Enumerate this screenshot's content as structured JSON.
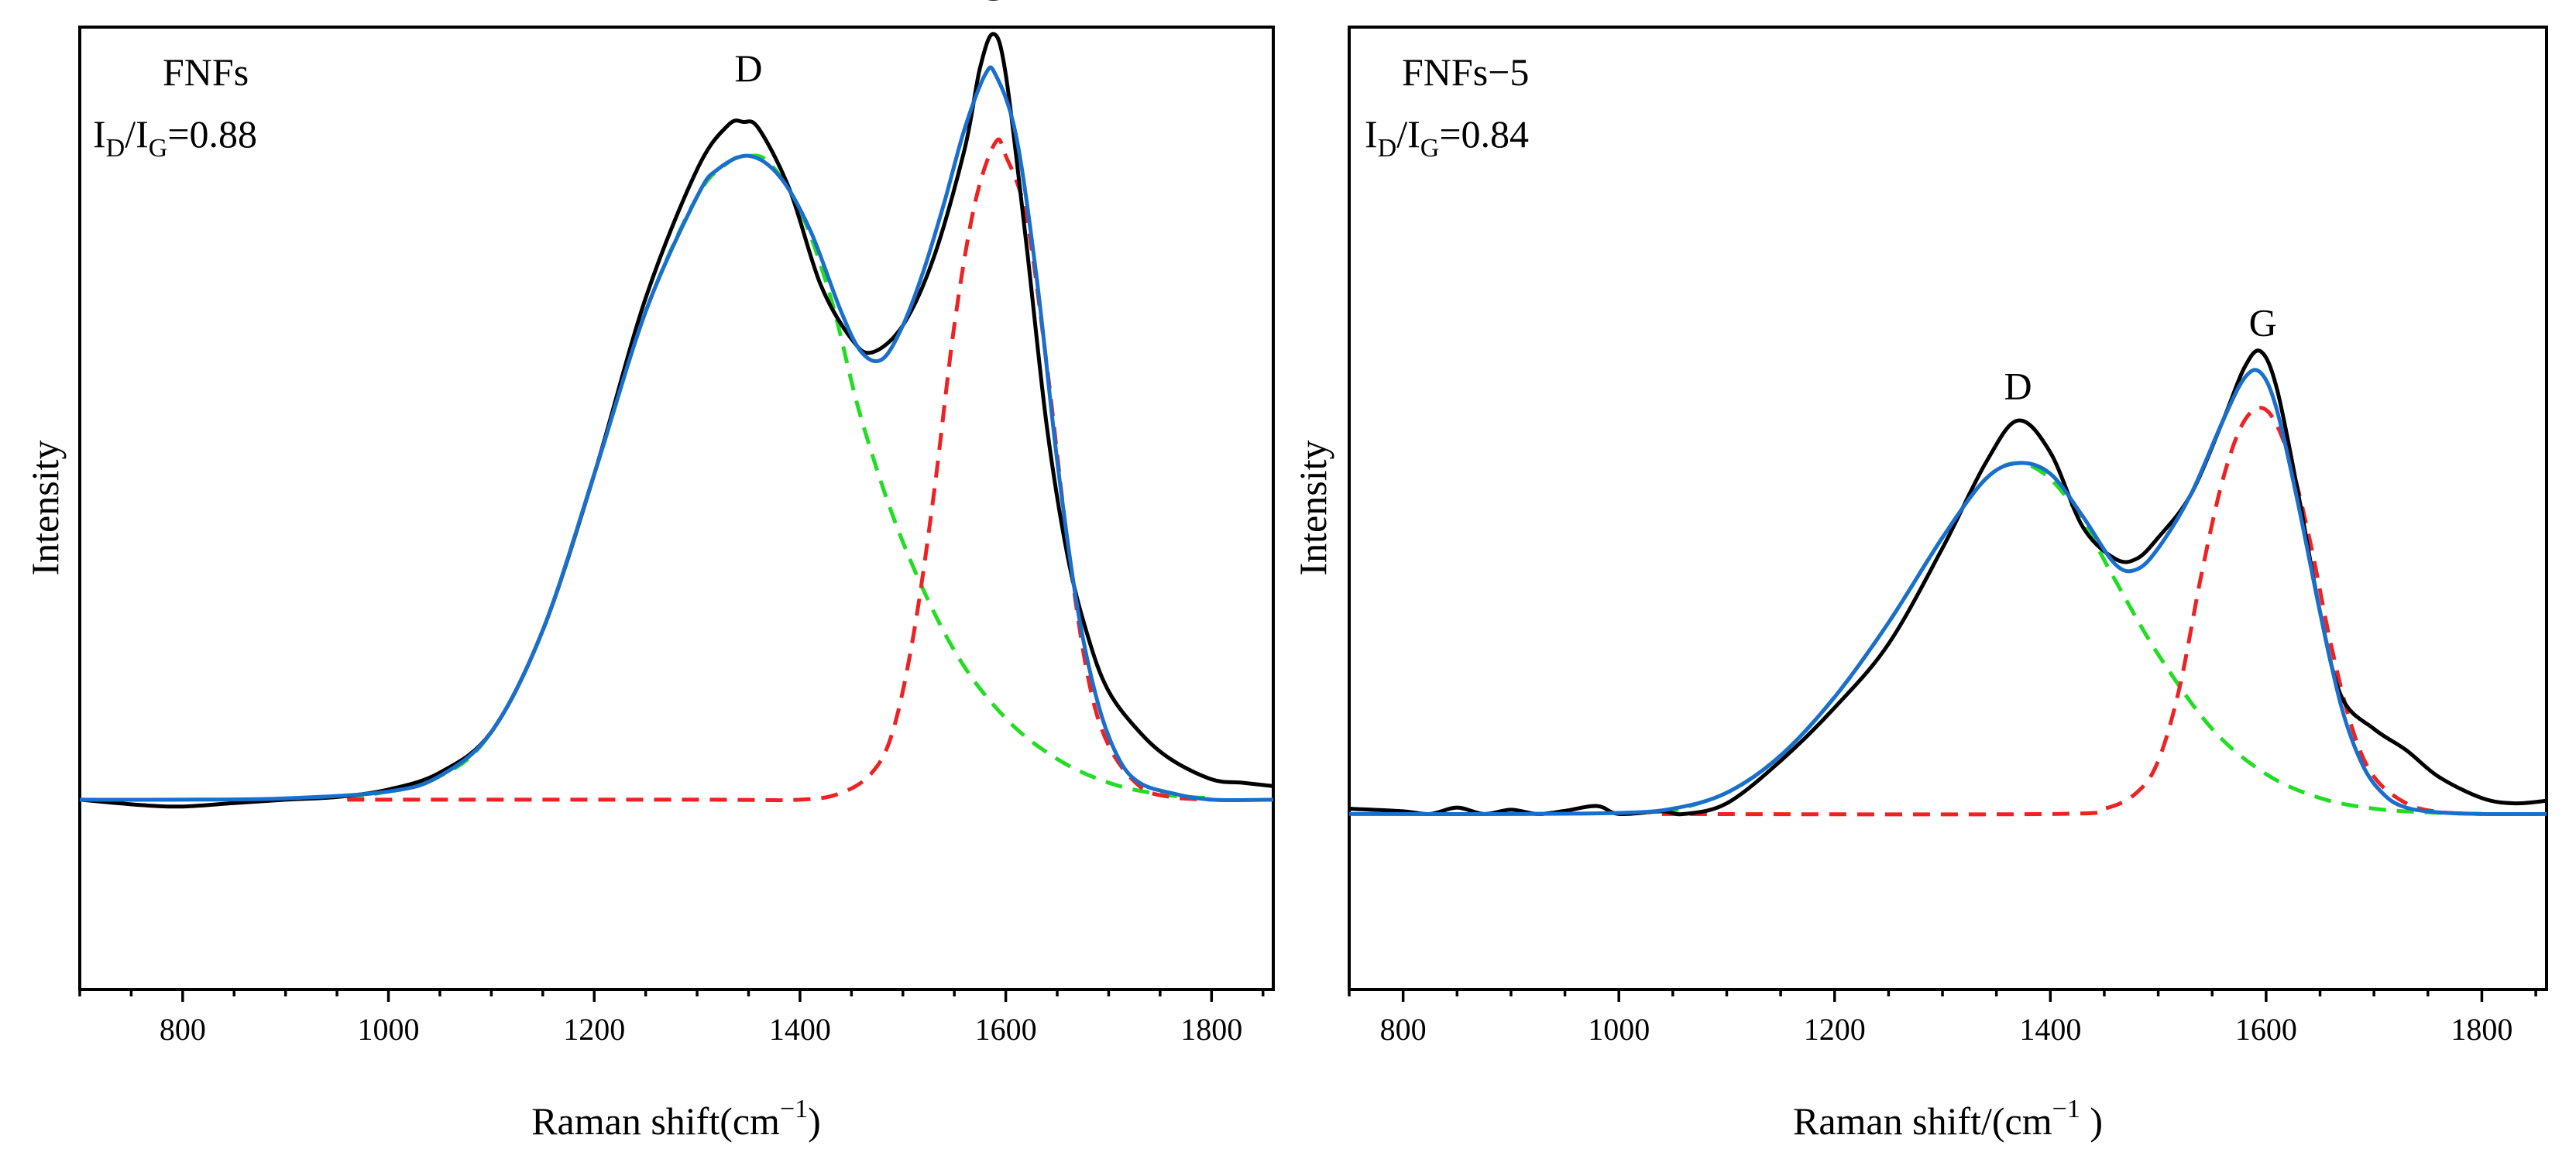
{
  "chart_data": [
    {
      "type": "line",
      "panel": "left",
      "sample_label": "FNFs",
      "ratio_prefix": "I",
      "ratio_sub_d": "D",
      "ratio_slash": "/I",
      "ratio_sub_g": "G",
      "ratio_value": "=0.88",
      "xlabel_main": "Raman shift(cm",
      "xlabel_sup": "−1",
      "xlabel_end": ")",
      "ylabel": "Intensity",
      "xlim": [
        700,
        1860
      ],
      "ylim": [
        -0.28,
        1.14
      ],
      "xticks": [
        800,
        1000,
        1200,
        1400,
        1600,
        1800
      ],
      "peak_labels": [
        {
          "text": "D",
          "x": 1350,
          "y": 1.06
        },
        {
          "text": "G",
          "x": 1587,
          "y": 1.18
        }
      ],
      "raw": {
        "x": [
          700,
          760,
          800,
          850,
          900,
          950,
          1000,
          1050,
          1100,
          1150,
          1200,
          1250,
          1300,
          1330,
          1345,
          1360,
          1390,
          1420,
          1450,
          1470,
          1500,
          1530,
          1560,
          1575,
          1588,
          1600,
          1620,
          1640,
          1660,
          1680,
          1700,
          1730,
          1760,
          1800,
          1830,
          1860
        ],
        "y": [
          0.0,
          -0.008,
          -0.01,
          -0.005,
          0.0,
          0.004,
          0.015,
          0.04,
          0.1,
          0.25,
          0.48,
          0.74,
          0.93,
          0.995,
          1.0,
          0.99,
          0.9,
          0.76,
          0.68,
          0.66,
          0.7,
          0.8,
          0.96,
          1.08,
          1.13,
          1.07,
          0.82,
          0.55,
          0.36,
          0.24,
          0.16,
          0.1,
          0.06,
          0.03,
          0.025,
          0.02
        ]
      },
      "fit": {
        "x": [
          700,
          800,
          900,
          1000,
          1050,
          1100,
          1150,
          1200,
          1250,
          1300,
          1320,
          1350,
          1380,
          1410,
          1440,
          1460,
          1480,
          1500,
          1520,
          1540,
          1560,
          1580,
          1590,
          1610,
          1630,
          1650,
          1670,
          1690,
          1710,
          1730,
          1760,
          1800,
          1860
        ],
        "y": [
          0.0,
          0.0,
          0.002,
          0.012,
          0.035,
          0.1,
          0.25,
          0.48,
          0.72,
          0.89,
          0.93,
          0.95,
          0.92,
          0.84,
          0.72,
          0.66,
          0.65,
          0.7,
          0.78,
          0.88,
          0.99,
          1.07,
          1.07,
          0.98,
          0.77,
          0.5,
          0.28,
          0.14,
          0.06,
          0.025,
          0.01,
          0.0,
          0.0
        ]
      },
      "d_band": {
        "name": "D",
        "x": [
          960,
          1050,
          1100,
          1150,
          1200,
          1250,
          1300,
          1330,
          1350,
          1370,
          1400,
          1430,
          1460,
          1500,
          1550,
          1600,
          1650,
          1700,
          1750,
          1800
        ],
        "y": [
          0.0,
          0.035,
          0.1,
          0.25,
          0.48,
          0.72,
          0.89,
          0.94,
          0.95,
          0.94,
          0.87,
          0.74,
          0.56,
          0.38,
          0.22,
          0.12,
          0.06,
          0.025,
          0.008,
          0.002
        ]
      },
      "g_band": {
        "name": "G",
        "x": [
          960,
          1300,
          1400,
          1440,
          1470,
          1490,
          1510,
          1530,
          1550,
          1570,
          1590,
          1600,
          1620,
          1640,
          1660,
          1680,
          1700,
          1730,
          1760,
          1800
        ],
        "y": [
          0.0,
          0.0,
          0.0,
          0.01,
          0.04,
          0.1,
          0.24,
          0.45,
          0.7,
          0.88,
          0.97,
          0.95,
          0.86,
          0.64,
          0.38,
          0.18,
          0.08,
          0.02,
          0.004,
          0.0
        ]
      }
    },
    {
      "type": "line",
      "panel": "right",
      "sample_label": "FNFs−5",
      "ratio_prefix": "I",
      "ratio_sub_d": "D",
      "ratio_slash": "/I",
      "ratio_sub_g": "G",
      "ratio_value": "=0.84",
      "xlabel_main": "Raman shift/(cm",
      "xlabel_sup": "−1",
      "xlabel_end": " )",
      "ylabel": "Intensity",
      "xlim": [
        750,
        1860
      ],
      "ylim": [
        -0.33,
        1.48
      ],
      "xticks": [
        800,
        1000,
        1200,
        1400,
        1600,
        1800
      ],
      "peak_labels": [
        {
          "text": "D",
          "x": 1370,
          "y": 0.78
        },
        {
          "text": "G",
          "x": 1597,
          "y": 0.9
        }
      ],
      "raw": {
        "x": [
          750,
          800,
          825,
          850,
          875,
          900,
          925,
          950,
          980,
          1000,
          1040,
          1060,
          1100,
          1150,
          1200,
          1250,
          1300,
          1340,
          1370,
          1400,
          1430,
          1460,
          1480,
          1500,
          1530,
          1560,
          1580,
          1595,
          1610,
          1630,
          1650,
          1670,
          1700,
          1730,
          1760,
          1800,
          1830,
          1860
        ],
        "y": [
          0.01,
          0.005,
          0.0,
          0.012,
          0.0,
          0.008,
          0.0,
          0.006,
          0.015,
          0.0,
          0.005,
          0.0,
          0.02,
          0.1,
          0.2,
          0.32,
          0.5,
          0.66,
          0.74,
          0.68,
          0.54,
          0.48,
          0.48,
          0.52,
          0.6,
          0.74,
          0.84,
          0.87,
          0.8,
          0.6,
          0.38,
          0.22,
          0.16,
          0.12,
          0.07,
          0.03,
          0.02,
          0.025
        ]
      },
      "fit": {
        "x": [
          750,
          900,
          1000,
          1050,
          1100,
          1150,
          1200,
          1250,
          1300,
          1340,
          1370,
          1400,
          1430,
          1460,
          1480,
          1500,
          1530,
          1560,
          1580,
          1595,
          1610,
          1630,
          1650,
          1670,
          1690,
          1710,
          1730,
          1760,
          1800,
          1860
        ],
        "y": [
          0.0,
          0.0,
          0.002,
          0.01,
          0.04,
          0.11,
          0.22,
          0.36,
          0.52,
          0.63,
          0.66,
          0.64,
          0.56,
          0.47,
          0.46,
          0.5,
          0.6,
          0.74,
          0.82,
          0.83,
          0.76,
          0.58,
          0.38,
          0.2,
          0.09,
          0.035,
          0.012,
          0.003,
          0.0,
          0.0
        ]
      },
      "d_band": {
        "name": "D",
        "x": [
          1040,
          1100,
          1150,
          1200,
          1250,
          1300,
          1340,
          1370,
          1400,
          1430,
          1460,
          1500,
          1550,
          1600,
          1650,
          1700,
          1750,
          1800
        ],
        "y": [
          0.0,
          0.04,
          0.11,
          0.22,
          0.36,
          0.52,
          0.63,
          0.66,
          0.63,
          0.55,
          0.44,
          0.3,
          0.16,
          0.075,
          0.03,
          0.01,
          0.003,
          0.0
        ]
      },
      "g_band": {
        "name": "G",
        "x": [
          1040,
          1400,
          1450,
          1480,
          1500,
          1520,
          1540,
          1560,
          1580,
          1600,
          1620,
          1640,
          1660,
          1680,
          1700,
          1730,
          1760,
          1800
        ],
        "y": [
          0.0,
          0.0,
          0.01,
          0.04,
          0.1,
          0.24,
          0.45,
          0.63,
          0.74,
          0.76,
          0.68,
          0.52,
          0.32,
          0.16,
          0.07,
          0.02,
          0.004,
          0.0
        ]
      }
    }
  ]
}
